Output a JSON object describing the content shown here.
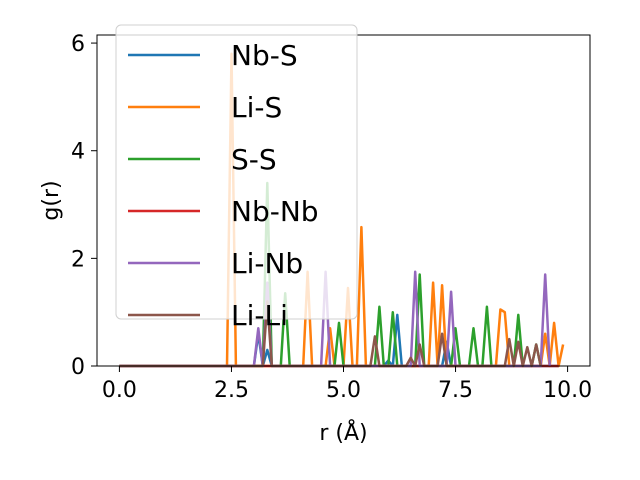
{
  "chart_data": {
    "type": "line",
    "xlabel": "r (Å)",
    "ylabel": "g(r)",
    "xlim": [
      -0.5,
      10.5
    ],
    "ylim": [
      0,
      6.15
    ],
    "xticks": [
      0.0,
      2.5,
      5.0,
      7.5,
      10.0
    ],
    "xtick_labels": [
      "0.0",
      "2.5",
      "5.0",
      "7.5",
      "10.0"
    ],
    "yticks": [
      0,
      2,
      4,
      6
    ],
    "ytick_labels": [
      "0",
      "2",
      "4",
      "6"
    ],
    "grid": false,
    "legend_position": "upper-left",
    "series": [
      {
        "name": "Nb-S",
        "color": "#1f77b4",
        "points": [
          [
            0.0,
            0
          ],
          [
            3.0,
            0
          ],
          [
            3.1,
            0.6
          ],
          [
            3.2,
            0
          ],
          [
            3.3,
            0.3
          ],
          [
            3.4,
            0
          ],
          [
            5.9,
            0
          ],
          [
            6.0,
            0.1
          ],
          [
            6.1,
            0
          ],
          [
            6.2,
            0.95
          ],
          [
            6.3,
            0
          ],
          [
            7.2,
            0
          ],
          [
            7.3,
            0.45
          ],
          [
            7.4,
            0
          ],
          [
            9.8,
            0
          ]
        ]
      },
      {
        "name": "Li-S",
        "color": "#ff7f0e",
        "points": [
          [
            0.0,
            0
          ],
          [
            2.4,
            0
          ],
          [
            2.5,
            5.8
          ],
          [
            2.6,
            0
          ],
          [
            4.1,
            0
          ],
          [
            4.2,
            1.75
          ],
          [
            4.3,
            0
          ],
          [
            4.6,
            0
          ],
          [
            4.7,
            0.7
          ],
          [
            4.8,
            0
          ],
          [
            5.0,
            0
          ],
          [
            5.1,
            1.45
          ],
          [
            5.2,
            0
          ],
          [
            5.3,
            0
          ],
          [
            5.4,
            2.58
          ],
          [
            5.5,
            0
          ],
          [
            6.9,
            0
          ],
          [
            7.0,
            1.55
          ],
          [
            7.1,
            0
          ],
          [
            7.2,
            1.5
          ],
          [
            7.3,
            0
          ],
          [
            8.4,
            0
          ],
          [
            8.5,
            1.05
          ],
          [
            8.6,
            1.0
          ],
          [
            8.7,
            0
          ],
          [
            9.4,
            0
          ],
          [
            9.5,
            0.6
          ],
          [
            9.6,
            0
          ],
          [
            9.7,
            0.8
          ],
          [
            9.8,
            0
          ],
          [
            9.9,
            0.4
          ]
        ]
      },
      {
        "name": "S-S",
        "color": "#2ca02c",
        "points": [
          [
            0.0,
            0
          ],
          [
            3.2,
            0
          ],
          [
            3.3,
            3.4
          ],
          [
            3.4,
            0
          ],
          [
            3.6,
            0
          ],
          [
            3.7,
            1.35
          ],
          [
            3.8,
            0
          ],
          [
            4.8,
            0
          ],
          [
            4.9,
            0.8
          ],
          [
            5.0,
            0
          ],
          [
            5.7,
            0
          ],
          [
            5.8,
            1.1
          ],
          [
            5.9,
            0
          ],
          [
            6.0,
            0
          ],
          [
            6.1,
            1.0
          ],
          [
            6.2,
            0
          ],
          [
            6.6,
            0
          ],
          [
            6.7,
            1.7
          ],
          [
            6.8,
            0
          ],
          [
            7.4,
            0
          ],
          [
            7.5,
            0.7
          ],
          [
            7.6,
            0
          ],
          [
            7.8,
            0
          ],
          [
            7.9,
            0.7
          ],
          [
            8.0,
            0
          ],
          [
            8.1,
            0
          ],
          [
            8.2,
            1.1
          ],
          [
            8.3,
            0
          ],
          [
            8.8,
            0
          ],
          [
            8.9,
            0.95
          ],
          [
            9.0,
            0
          ],
          [
            9.2,
            0
          ],
          [
            9.3,
            0.4
          ],
          [
            9.4,
            0
          ]
        ]
      },
      {
        "name": "Nb-Nb",
        "color": "#d62728",
        "points": [
          [
            0.0,
            0
          ],
          [
            9.8,
            0
          ]
        ]
      },
      {
        "name": "Li-Nb",
        "color": "#9467bd",
        "points": [
          [
            0.0,
            0
          ],
          [
            3.0,
            0
          ],
          [
            3.1,
            0.7
          ],
          [
            3.2,
            0
          ],
          [
            3.3,
            1.55
          ],
          [
            3.4,
            0
          ],
          [
            4.5,
            0
          ],
          [
            4.6,
            1.75
          ],
          [
            4.7,
            0
          ],
          [
            6.5,
            0
          ],
          [
            6.6,
            1.75
          ],
          [
            6.7,
            0
          ],
          [
            7.3,
            0
          ],
          [
            7.4,
            1.38
          ],
          [
            7.5,
            0
          ],
          [
            9.4,
            0
          ],
          [
            9.5,
            1.7
          ],
          [
            9.6,
            0
          ]
        ]
      },
      {
        "name": "Li-Li",
        "color": "#8c564b",
        "points": [
          [
            0.0,
            0
          ],
          [
            3.2,
            0
          ],
          [
            3.3,
            1.2
          ],
          [
            3.4,
            0
          ],
          [
            5.6,
            0
          ],
          [
            5.7,
            0.55
          ],
          [
            5.8,
            0
          ],
          [
            6.4,
            0
          ],
          [
            6.5,
            0.15
          ],
          [
            6.6,
            0
          ],
          [
            6.7,
            0.4
          ],
          [
            6.8,
            0
          ],
          [
            7.1,
            0
          ],
          [
            7.2,
            0.6
          ],
          [
            7.3,
            0
          ],
          [
            8.6,
            0
          ],
          [
            8.7,
            0.5
          ],
          [
            8.8,
            0
          ],
          [
            8.9,
            0.45
          ],
          [
            9.0,
            0
          ],
          [
            9.1,
            0.35
          ],
          [
            9.2,
            0
          ],
          [
            9.3,
            0.4
          ],
          [
            9.4,
            0
          ]
        ]
      }
    ]
  }
}
